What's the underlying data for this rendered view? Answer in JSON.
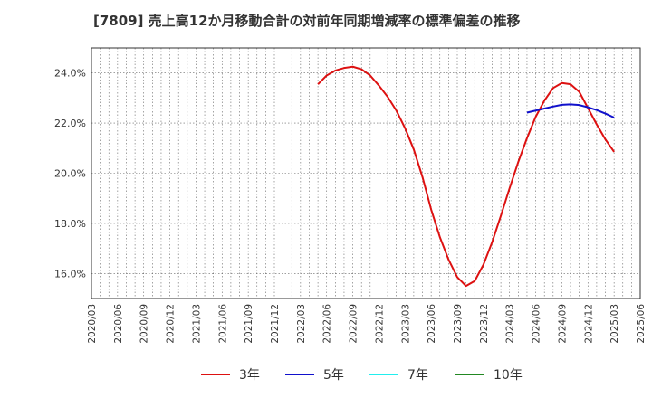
{
  "chart_data": {
    "type": "line",
    "title": "[7809]  売上高12か月移動合計の対前年同期増減率の標準偏差の推移",
    "xlabel": "",
    "ylabel": "",
    "ylim": [
      15.0,
      25.0
    ],
    "yticks": [
      16.0,
      18.0,
      20.0,
      22.0,
      24.0
    ],
    "ytick_labels": [
      "16.0%",
      "18.0%",
      "20.0%",
      "22.0%",
      "24.0%"
    ],
    "x_labels": [
      "2020/03",
      "2020/06",
      "2020/09",
      "2020/12",
      "2021/03",
      "2021/06",
      "2021/09",
      "2021/12",
      "2022/03",
      "2022/06",
      "2022/09",
      "2022/12",
      "2023/03",
      "2023/06",
      "2023/09",
      "2023/12",
      "2024/03",
      "2024/06",
      "2024/09",
      "2024/12",
      "2025/03",
      "2025/06"
    ],
    "grid": true,
    "legend_position": "bottom",
    "series": [
      {
        "name": "3年",
        "color": "#dd1111",
        "points": [
          {
            "x": "2022/05",
            "y": 23.55
          },
          {
            "x": "2022/06",
            "y": 23.9
          },
          {
            "x": "2022/07",
            "y": 24.1
          },
          {
            "x": "2022/08",
            "y": 24.2
          },
          {
            "x": "2022/09",
            "y": 24.25
          },
          {
            "x": "2022/10",
            "y": 24.15
          },
          {
            "x": "2022/11",
            "y": 23.9
          },
          {
            "x": "2022/12",
            "y": 23.5
          },
          {
            "x": "2023/01",
            "y": 23.05
          },
          {
            "x": "2023/02",
            "y": 22.5
          },
          {
            "x": "2023/03",
            "y": 21.8
          },
          {
            "x": "2023/04",
            "y": 20.95
          },
          {
            "x": "2023/05",
            "y": 19.85
          },
          {
            "x": "2023/06",
            "y": 18.55
          },
          {
            "x": "2023/07",
            "y": 17.45
          },
          {
            "x": "2023/08",
            "y": 16.55
          },
          {
            "x": "2023/09",
            "y": 15.85
          },
          {
            "x": "2023/10",
            "y": 15.5
          },
          {
            "x": "2023/11",
            "y": 15.7
          },
          {
            "x": "2023/12",
            "y": 16.35
          },
          {
            "x": "2024/01",
            "y": 17.25
          },
          {
            "x": "2024/02",
            "y": 18.3
          },
          {
            "x": "2024/03",
            "y": 19.4
          },
          {
            "x": "2024/04",
            "y": 20.45
          },
          {
            "x": "2024/05",
            "y": 21.4
          },
          {
            "x": "2024/06",
            "y": 22.25
          },
          {
            "x": "2024/07",
            "y": 22.9
          },
          {
            "x": "2024/08",
            "y": 23.4
          },
          {
            "x": "2024/09",
            "y": 23.6
          },
          {
            "x": "2024/10",
            "y": 23.55
          },
          {
            "x": "2024/11",
            "y": 23.25
          },
          {
            "x": "2024/12",
            "y": 22.6
          },
          {
            "x": "2025/01",
            "y": 21.95
          },
          {
            "x": "2025/02",
            "y": 21.35
          },
          {
            "x": "2025/03",
            "y": 20.85
          }
        ]
      },
      {
        "name": "5年",
        "color": "#1111cc",
        "points": [
          {
            "x": "2024/05",
            "y": 22.42
          },
          {
            "x": "2024/06",
            "y": 22.5
          },
          {
            "x": "2024/07",
            "y": 22.58
          },
          {
            "x": "2024/08",
            "y": 22.66
          },
          {
            "x": "2024/09",
            "y": 22.73
          },
          {
            "x": "2024/10",
            "y": 22.75
          },
          {
            "x": "2024/11",
            "y": 22.72
          },
          {
            "x": "2024/12",
            "y": 22.63
          },
          {
            "x": "2025/01",
            "y": 22.52
          },
          {
            "x": "2025/02",
            "y": 22.38
          },
          {
            "x": "2025/03",
            "y": 22.22
          }
        ]
      },
      {
        "name": "7年",
        "color": "#22eeee",
        "points": []
      },
      {
        "name": "10年",
        "color": "#228822",
        "points": []
      }
    ]
  }
}
